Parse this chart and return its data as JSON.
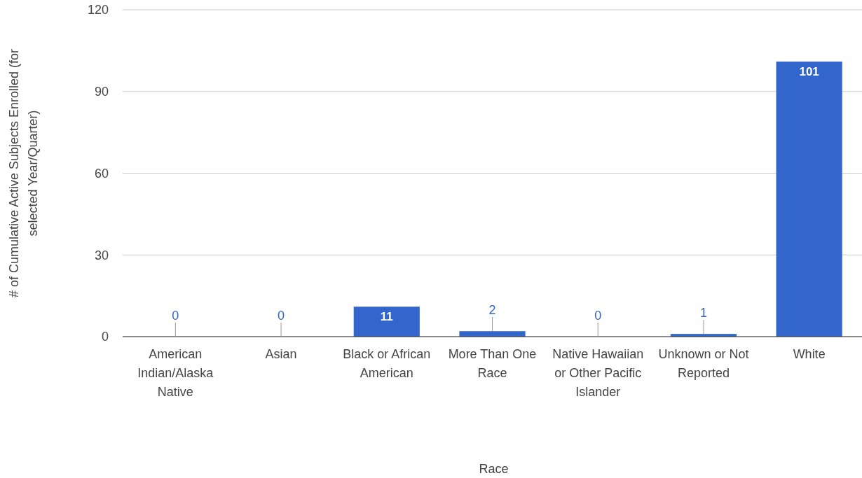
{
  "chart_data": {
    "type": "bar",
    "xlabel": "Race",
    "ylabel": "# of Cumulative Active Subjects Enrolled (for selected Year/Quarter)",
    "categories": [
      "American Indian/Alaska Native",
      "Asian",
      "Black or African American",
      "More Than One Race",
      "Native Hawaiian or Other Pacific Islander",
      "Unknown or Not Reported",
      "White"
    ],
    "values": [
      0,
      0,
      11,
      2,
      0,
      1,
      101
    ],
    "color": "#3366cc",
    "ylim": [
      0,
      120
    ],
    "yticks": [
      0,
      30,
      60,
      90,
      120
    ],
    "grid": "y",
    "data_labels": true
  }
}
